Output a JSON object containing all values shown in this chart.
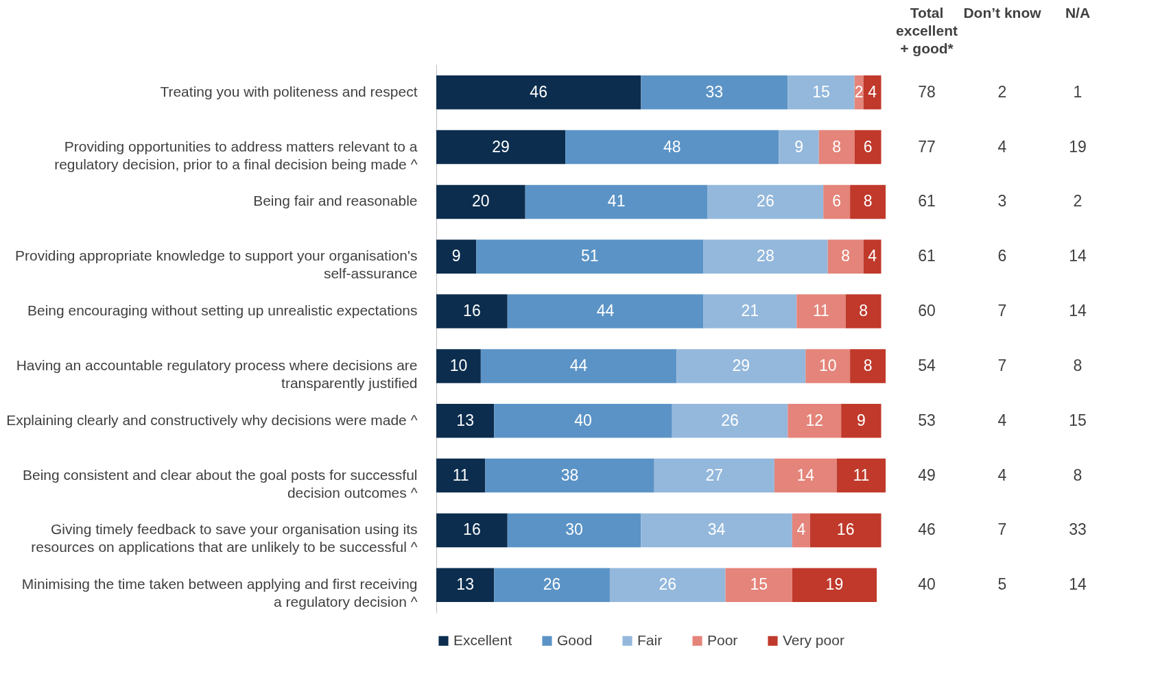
{
  "chart_data": [
    {
      "type": "bar",
      "orientation": "horizontal",
      "stacked": true,
      "data_labels": true,
      "tick_labels": "y",
      "legend": "bottom",
      "categories": [
        "Treating you with politeness and respect",
        "Providing opportunities to address matters relevant to a regulatory decision, prior to a final decision being made ^",
        "Being fair and reasonable",
        "Providing appropriate knowledge to support your organisation's self-assurance",
        "Being encouraging without setting up unrealistic expectations",
        "Having an accountable regulatory process where decisions are transparently justified",
        "Explaining clearly and constructively why decisions were made ^",
        "Being consistent and clear about the goal posts for successful decision outcomes ^",
        "Giving timely feedback to save your organisation using its resources on applications that are unlikely to be successful ^",
        "Minimising the time taken between applying and first receiving a regulatory decision ^"
      ],
      "series": [
        {
          "name": "Excellent",
          "color": "#0c2d4e",
          "values": [
            46,
            29,
            20,
            9,
            16,
            10,
            13,
            11,
            16,
            13
          ]
        },
        {
          "name": "Good",
          "color": "#5b93c6",
          "values": [
            33,
            48,
            41,
            51,
            44,
            44,
            40,
            38,
            30,
            26
          ]
        },
        {
          "name": "Fair",
          "color": "#94b8dc",
          "values": [
            15,
            9,
            26,
            28,
            21,
            29,
            26,
            27,
            34,
            26
          ]
        },
        {
          "name": "Poor",
          "color": "#e4847a",
          "values": [
            2,
            8,
            6,
            8,
            11,
            10,
            12,
            14,
            4,
            15
          ]
        },
        {
          "name": "Very poor",
          "color": "#c0392b",
          "values": [
            4,
            6,
            8,
            4,
            8,
            8,
            9,
            11,
            16,
            19
          ]
        }
      ]
    },
    {
      "type": "heatmap",
      "data_labels": true,
      "tick_labels": "x",
      "categories": [
        "Total excellent + good*",
        "Don’t know",
        "N/A"
      ],
      "y_categories": [
        null,
        null,
        null,
        null,
        null,
        null,
        null,
        null,
        null,
        null
      ],
      "cells": [
        [
          78,
          2,
          1
        ],
        [
          77,
          4,
          19
        ],
        [
          61,
          3,
          2
        ],
        [
          61,
          6,
          14
        ],
        [
          60,
          7,
          14
        ],
        [
          54,
          7,
          8
        ],
        [
          53,
          4,
          15
        ],
        [
          49,
          4,
          8
        ],
        [
          46,
          7,
          33
        ],
        [
          40,
          5,
          14
        ]
      ]
    }
  ]
}
